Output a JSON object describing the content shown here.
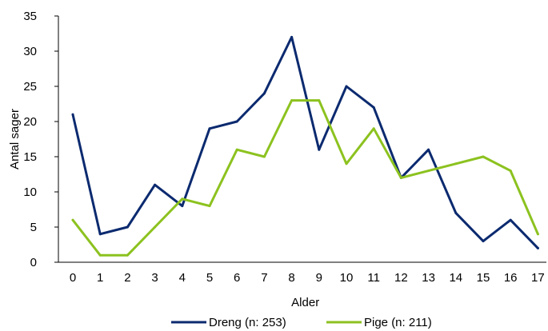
{
  "chart_data": {
    "type": "line",
    "xlabel": "Alder",
    "ylabel": "Antal sager",
    "categories": [
      "0",
      "1",
      "2",
      "3",
      "4",
      "5",
      "6",
      "7",
      "8",
      "9",
      "10",
      "11",
      "12",
      "13",
      "14",
      "15",
      "16",
      "17"
    ],
    "ylim": [
      0,
      35
    ],
    "yticks": [
      "0",
      "5",
      "10",
      "15",
      "20",
      "25",
      "30",
      "35"
    ],
    "grid": false,
    "legend_position": "bottom",
    "series": [
      {
        "name": "Dreng (n: 253)",
        "color": "#0b2a6f",
        "values": [
          21,
          4,
          5,
          11,
          8,
          19,
          20,
          24,
          32,
          16,
          25,
          22,
          12,
          16,
          7,
          3,
          6,
          2
        ]
      },
      {
        "name": "Pige (n: 211)",
        "color": "#8cc21f",
        "values": [
          6,
          1,
          1,
          5,
          9,
          8,
          16,
          15,
          23,
          23,
          14,
          19,
          12,
          13,
          14,
          15,
          13,
          4
        ]
      }
    ]
  }
}
